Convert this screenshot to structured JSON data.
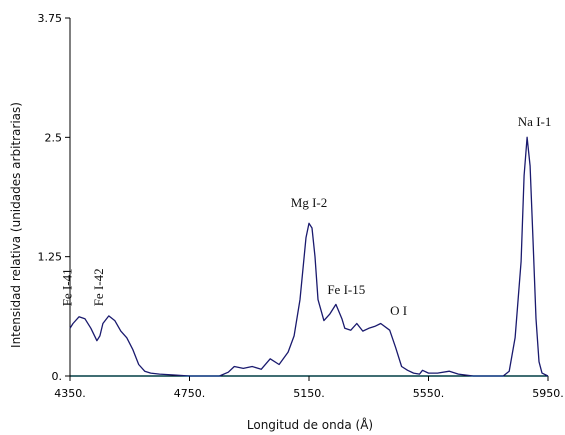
{
  "chart_data": {
    "type": "line",
    "xlabel": "Longitud de onda (Å)",
    "ylabel": "Intensidad relativa (unidades arbitrarias)",
    "xlim": [
      4350,
      5950
    ],
    "ylim": [
      0,
      3.75
    ],
    "x_ticks": [
      4350,
      4750,
      5150,
      5550,
      5950
    ],
    "x_tick_labels": [
      "4350.",
      "4750.",
      "5150.",
      "5550.",
      "5950."
    ],
    "y_ticks": [
      0,
      1.25,
      2.5,
      3.75
    ],
    "y_tick_labels": [
      "0.",
      "1.25",
      "2.5",
      "3.75"
    ],
    "grid": false,
    "colors": {
      "line": "#1a1a6e",
      "baseline": "#7fdde6",
      "axis": "#000000"
    },
    "series": [
      {
        "x": [
          4350,
          4360,
          4380,
          4400,
          4420,
          4440,
          4450,
          4460,
          4480,
          4500,
          4520,
          4540,
          4560,
          4580,
          4600,
          4620,
          4650,
          4700,
          4750,
          4800,
          4850,
          4880,
          4900,
          4930,
          4960,
          4990,
          5020,
          5050,
          5080,
          5100,
          5120,
          5140,
          5150,
          5160,
          5170,
          5180,
          5200,
          5220,
          5240,
          5260,
          5270,
          5290,
          5310,
          5330,
          5350,
          5370,
          5390,
          5420,
          5440,
          5460,
          5480,
          5500,
          5520,
          5530,
          5550,
          5580,
          5620,
          5650,
          5700,
          5750,
          5800,
          5820,
          5840,
          5860,
          5870,
          5880,
          5890,
          5900,
          5910,
          5920,
          5930,
          5950
        ],
        "y": [
          0.5,
          0.55,
          0.62,
          0.6,
          0.5,
          0.37,
          0.42,
          0.55,
          0.63,
          0.58,
          0.47,
          0.4,
          0.28,
          0.12,
          0.05,
          0.03,
          0.02,
          0.01,
          0.0,
          0.0,
          0.0,
          0.04,
          0.1,
          0.08,
          0.1,
          0.07,
          0.18,
          0.12,
          0.25,
          0.42,
          0.8,
          1.45,
          1.6,
          1.55,
          1.25,
          0.8,
          0.58,
          0.65,
          0.75,
          0.6,
          0.5,
          0.48,
          0.55,
          0.47,
          0.5,
          0.52,
          0.55,
          0.48,
          0.3,
          0.1,
          0.06,
          0.03,
          0.02,
          0.06,
          0.03,
          0.03,
          0.05,
          0.02,
          0.0,
          0.0,
          0.0,
          0.05,
          0.4,
          1.2,
          2.1,
          2.5,
          2.2,
          1.4,
          0.6,
          0.15,
          0.03,
          0.0
        ]
      }
    ],
    "annotations": [
      {
        "text": "Fe I-41",
        "x": 4355,
        "y": 0.73,
        "rotate": true
      },
      {
        "text": "Fe I-42",
        "x": 4460,
        "y": 0.73,
        "rotate": true
      },
      {
        "text": "Mg I-2",
        "x": 5150,
        "y": 1.77,
        "rotate": false
      },
      {
        "text": "Fe I-15",
        "x": 5275,
        "y": 0.86,
        "rotate": false
      },
      {
        "text": "O I",
        "x": 5450,
        "y": 0.64,
        "rotate": false
      },
      {
        "text": "Na I-1",
        "x": 5905,
        "y": 2.62,
        "rotate": false
      }
    ]
  }
}
